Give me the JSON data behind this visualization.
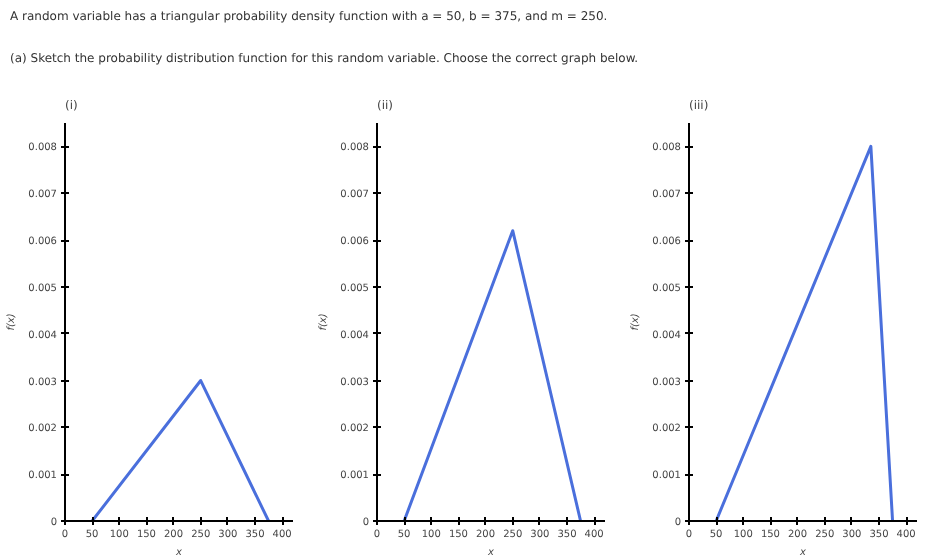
{
  "chart_data": [
    {
      "type": "line",
      "title": "(i)",
      "annotations": [
        "A random variable has a triangular probability density function with a = 50, b = 375, and m = 250.",
        "(a) Sketch the probability distribution function for this random variable. Choose the correct graph below."
      ],
      "xlabel": "x",
      "ylabel": "f(x)",
      "x": [
        50,
        250,
        375
      ],
      "values": [
        0,
        0.003,
        0
      ],
      "color": "#4a6fdc",
      "xlim": [
        0,
        420
      ],
      "ylim": [
        0,
        0.0085
      ],
      "xticks": [
        0,
        50,
        100,
        150,
        200,
        250,
        300,
        350,
        400
      ],
      "yticks": [
        0,
        0.001,
        0.002,
        0.003,
        0.004,
        0.005,
        0.006,
        0.007,
        0.008
      ],
      "grid": false,
      "marker": "none"
    },
    {
      "type": "line",
      "title": "(ii)",
      "xlabel": "x",
      "ylabel": "f(x)",
      "x": [
        50,
        250,
        375
      ],
      "values": [
        0,
        0.0062,
        0
      ],
      "color": "#4a6fdc",
      "xlim": [
        0,
        420
      ],
      "ylim": [
        0,
        0.0085
      ],
      "xticks": [
        0,
        50,
        100,
        150,
        200,
        250,
        300,
        350,
        400
      ],
      "yticks": [
        0,
        0.001,
        0.002,
        0.003,
        0.004,
        0.005,
        0.006,
        0.007,
        0.008
      ],
      "grid": false,
      "marker": "none"
    },
    {
      "type": "line",
      "title": "(iii)",
      "xlabel": "x",
      "ylabel": "f(x)",
      "x": [
        50,
        335,
        375
      ],
      "values": [
        0,
        0.008,
        0
      ],
      "color": "#4a6fdc",
      "xlim": [
        0,
        420
      ],
      "ylim": [
        0,
        0.0085
      ],
      "xticks": [
        0,
        50,
        100,
        150,
        200,
        250,
        300,
        350,
        400
      ],
      "yticks": [
        0,
        0.001,
        0.002,
        0.003,
        0.004,
        0.005,
        0.006,
        0.007,
        0.008
      ],
      "grid": false,
      "marker": "none"
    }
  ]
}
